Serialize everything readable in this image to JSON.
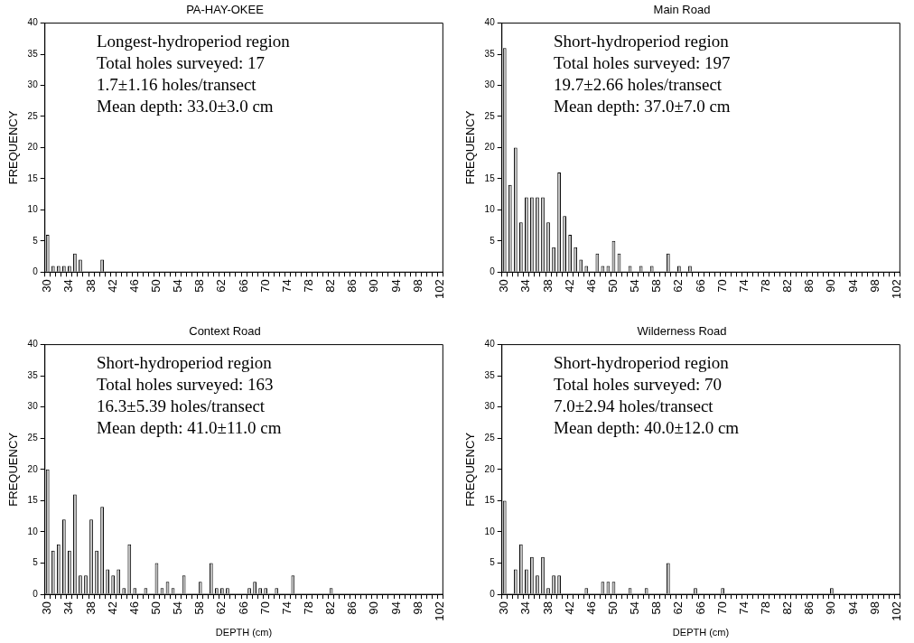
{
  "chart_data": [
    {
      "type": "bar",
      "title": "PA-HAY-OKEE",
      "ylabel": "FREQUENCY",
      "color": "#c0c0c0",
      "categories": [
        "30",
        null,
        null,
        null,
        "34",
        null,
        null,
        null,
        "38",
        null,
        null,
        null,
        "42",
        null,
        null,
        null,
        "46",
        null,
        null,
        null,
        "50",
        null,
        null,
        null,
        "54",
        null,
        null,
        null,
        "58",
        null,
        null,
        null,
        "62",
        null,
        null,
        null,
        "66",
        null,
        null,
        null,
        "70",
        null,
        null,
        null,
        "74",
        null,
        null,
        null,
        "78",
        null,
        null,
        null,
        "82",
        null,
        null,
        null,
        "86",
        null,
        null,
        null,
        "90",
        null,
        null,
        null,
        "94",
        null,
        null,
        null,
        "98",
        null,
        null,
        null,
        "102"
      ],
      "values": [
        6,
        1,
        1,
        1,
        1,
        3,
        2,
        0,
        0,
        0,
        2,
        0,
        0,
        0,
        0,
        0,
        0,
        0,
        0,
        0,
        0,
        0,
        0,
        0,
        0,
        0,
        0,
        0,
        0,
        0,
        0,
        0,
        0,
        0,
        0,
        0,
        0,
        0,
        0,
        0,
        0,
        0,
        0,
        0,
        0,
        0,
        0,
        0,
        0,
        0,
        0,
        0,
        0,
        0,
        0,
        0,
        0,
        0,
        0,
        0,
        0,
        0,
        0,
        0,
        0,
        0,
        0,
        0,
        0,
        0,
        0,
        0,
        0
      ],
      "ylim": [
        0,
        40
      ],
      "yticks": [
        0,
        5,
        10,
        15,
        20,
        25,
        30,
        35,
        40
      ],
      "annotations": [
        "Longest-hydroperiod region",
        "Total holes surveyed: 17",
        "1.7±1.16 holes/transect",
        "Mean depth: 33.0±3.0 cm"
      ]
    },
    {
      "type": "bar",
      "title": "Main Road",
      "ylabel": "FREQUENCY",
      "color": "#c0c0c0",
      "categories": [
        "30",
        null,
        null,
        null,
        "34",
        null,
        null,
        null,
        "38",
        null,
        null,
        null,
        "42",
        null,
        null,
        null,
        "46",
        null,
        null,
        null,
        "50",
        null,
        null,
        null,
        "54",
        null,
        null,
        null,
        "58",
        null,
        null,
        null,
        "62",
        null,
        null,
        null,
        "66",
        null,
        null,
        null,
        "70",
        null,
        null,
        null,
        "74",
        null,
        null,
        null,
        "78",
        null,
        null,
        null,
        "82",
        null,
        null,
        null,
        "86",
        null,
        null,
        null,
        "90",
        null,
        null,
        null,
        "94",
        null,
        null,
        null,
        "98",
        null,
        null,
        null,
        "102"
      ],
      "values": [
        36,
        14,
        20,
        8,
        12,
        12,
        12,
        12,
        8,
        4,
        16,
        9,
        6,
        4,
        2,
        1,
        0,
        3,
        1,
        1,
        5,
        3,
        0,
        1,
        0,
        1,
        0,
        1,
        0,
        0,
        3,
        0,
        1,
        0,
        1,
        0,
        0,
        0,
        0,
        0,
        0,
        0,
        0,
        0,
        0,
        0,
        0,
        0,
        0,
        0,
        0,
        0,
        0,
        0,
        0,
        0,
        0,
        0,
        0,
        0,
        0,
        0,
        0,
        0,
        0,
        0,
        0,
        0,
        0,
        0,
        0,
        0,
        0
      ],
      "ylim": [
        0,
        40
      ],
      "yticks": [
        0,
        5,
        10,
        15,
        20,
        25,
        30,
        35,
        40
      ],
      "annotations": [
        "Short-hydroperiod region",
        "Total holes surveyed: 197",
        "19.7±2.66 holes/transect",
        "Mean depth: 37.0±7.0 cm"
      ]
    },
    {
      "type": "bar",
      "title": "Context Road",
      "xlabel": "DEPTH (cm)",
      "ylabel": "FREQUENCY",
      "color": "#c0c0c0",
      "categories": [
        "30",
        null,
        null,
        null,
        "34",
        null,
        null,
        null,
        "38",
        null,
        null,
        null,
        "42",
        null,
        null,
        null,
        "46",
        null,
        null,
        null,
        "50",
        null,
        null,
        null,
        "54",
        null,
        null,
        null,
        "58",
        null,
        null,
        null,
        "62",
        null,
        null,
        null,
        "66",
        null,
        null,
        null,
        "70",
        null,
        null,
        null,
        "74",
        null,
        null,
        null,
        "78",
        null,
        null,
        null,
        "82",
        null,
        null,
        null,
        "86",
        null,
        null,
        null,
        "90",
        null,
        null,
        null,
        "94",
        null,
        null,
        null,
        "98",
        null,
        null,
        null,
        "102"
      ],
      "values": [
        20,
        7,
        8,
        12,
        7,
        16,
        3,
        3,
        12,
        7,
        14,
        4,
        3,
        4,
        1,
        8,
        1,
        0,
        1,
        0,
        5,
        1,
        2,
        1,
        0,
        3,
        0,
        0,
        2,
        0,
        5,
        1,
        1,
        1,
        0,
        0,
        0,
        1,
        2,
        1,
        1,
        0,
        1,
        0,
        0,
        3,
        0,
        0,
        0,
        0,
        0,
        0,
        1,
        0,
        0,
        0,
        0,
        0,
        0,
        0,
        0,
        0,
        0,
        0,
        0,
        0,
        0,
        0,
        0,
        0,
        0,
        0,
        0
      ],
      "ylim": [
        0,
        40
      ],
      "yticks": [
        0,
        5,
        10,
        15,
        20,
        25,
        30,
        35,
        40
      ],
      "annotations": [
        "Short-hydroperiod region",
        "Total holes surveyed: 163",
        "16.3±5.39 holes/transect",
        "Mean depth: 41.0±11.0 cm"
      ]
    },
    {
      "type": "bar",
      "title": "Wilderness Road",
      "xlabel": "DEPTH (cm)",
      "ylabel": "FREQUENCY",
      "color": "#c0c0c0",
      "categories": [
        "30",
        null,
        null,
        null,
        "34",
        null,
        null,
        null,
        "38",
        null,
        null,
        null,
        "42",
        null,
        null,
        null,
        "46",
        null,
        null,
        null,
        "50",
        null,
        null,
        null,
        "54",
        null,
        null,
        null,
        "58",
        null,
        null,
        null,
        "62",
        null,
        null,
        null,
        "66",
        null,
        null,
        null,
        "70",
        null,
        null,
        null,
        "74",
        null,
        null,
        null,
        "78",
        null,
        null,
        null,
        "82",
        null,
        null,
        null,
        "86",
        null,
        null,
        null,
        "90",
        null,
        null,
        null,
        "94",
        null,
        null,
        null,
        "98",
        null,
        null,
        null,
        "102"
      ],
      "values": [
        15,
        0,
        4,
        8,
        4,
        6,
        3,
        6,
        1,
        3,
        3,
        0,
        0,
        0,
        0,
        1,
        0,
        0,
        2,
        2,
        2,
        0,
        0,
        1,
        0,
        0,
        1,
        0,
        0,
        0,
        5,
        0,
        0,
        0,
        0,
        1,
        0,
        0,
        0,
        0,
        1,
        0,
        0,
        0,
        0,
        0,
        0,
        0,
        0,
        0,
        0,
        0,
        0,
        0,
        0,
        0,
        0,
        0,
        0,
        0,
        1,
        0,
        0,
        0,
        0,
        0,
        0,
        0,
        0,
        0,
        0,
        0,
        0
      ],
      "ylim": [
        0,
        40
      ],
      "yticks": [
        0,
        5,
        10,
        15,
        20,
        25,
        30,
        35,
        40
      ],
      "annotations": [
        "Short-hydroperiod region",
        "Total holes surveyed: 70",
        "7.0±2.94 holes/transect",
        "Mean depth: 40.0±12.0 cm"
      ]
    }
  ]
}
